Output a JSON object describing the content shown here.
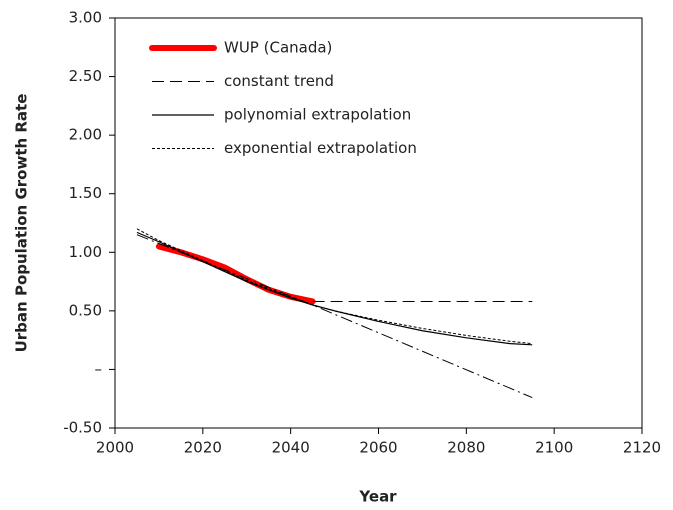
{
  "chart_data": {
    "type": "line",
    "xlabel": "Year",
    "ylabel": "Urban Population Growth Rate",
    "xlim": [
      2000,
      2120
    ],
    "xticks": [
      2000,
      2020,
      2040,
      2060,
      2080,
      2100,
      2120
    ],
    "ylim": [
      -0.5,
      3.0
    ],
    "yticks": [
      {
        "value": -0.5,
        "label": "-0.50"
      },
      {
        "value": 0,
        "label": "–"
      },
      {
        "value": 0.5,
        "label": "0.50"
      },
      {
        "value": 1.0,
        "label": "1.00"
      },
      {
        "value": 1.5,
        "label": "1.50"
      },
      {
        "value": 2.0,
        "label": "2.00"
      },
      {
        "value": 2.5,
        "label": "2.50"
      },
      {
        "value": 3.0,
        "label": "3.00"
      }
    ],
    "legend": "upper left",
    "series": [
      {
        "name": "WUP (Canada)",
        "color": "#ff0000",
        "width": 6,
        "dash": "solid",
        "x": [
          2010,
          2015,
          2020,
          2025,
          2030,
          2035,
          2040,
          2045
        ],
        "values": [
          1.05,
          1.0,
          0.94,
          0.87,
          0.77,
          0.68,
          0.62,
          0.58
        ]
      },
      {
        "name": "constant trend",
        "color": "#000000",
        "width": 1,
        "dash": "dashed",
        "x": [
          2045,
          2095
        ],
        "values": [
          0.58,
          0.58
        ]
      },
      {
        "name": "polynomial extrapolation",
        "color": "#000000",
        "width": 1.2,
        "dash": "solid",
        "x": [
          2005,
          2010,
          2020,
          2030,
          2040,
          2045,
          2050,
          2060,
          2070,
          2080,
          2090,
          2095
        ],
        "values": [
          1.17,
          1.09,
          0.92,
          0.75,
          0.61,
          0.55,
          0.5,
          0.41,
          0.33,
          0.27,
          0.22,
          0.21
        ]
      },
      {
        "name": "exponential extrapolation",
        "color": "#000000",
        "width": 1,
        "dash": "dotted",
        "x": [
          2005,
          2010,
          2020,
          2030,
          2040,
          2045,
          2050,
          2060,
          2070,
          2080,
          2090,
          2095
        ],
        "values": [
          1.2,
          1.1,
          0.93,
          0.76,
          0.62,
          0.55,
          0.5,
          0.42,
          0.35,
          0.29,
          0.24,
          0.22
        ]
      },
      {
        "color": "#000000",
        "width": 1,
        "dash": "dashdot",
        "x": [
          2005,
          2045,
          2095
        ],
        "values": [
          1.15,
          0.55,
          -0.24
        ]
      }
    ]
  }
}
